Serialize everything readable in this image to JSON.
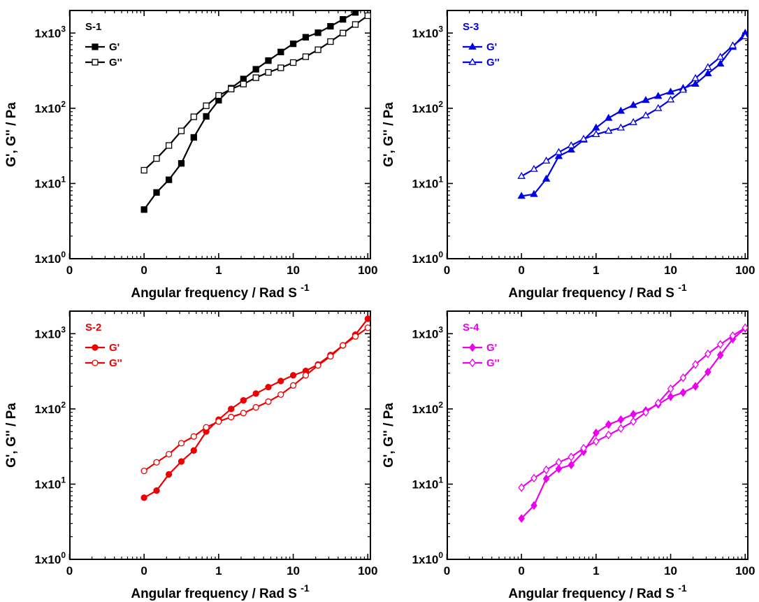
{
  "chart_data": [
    {
      "type": "line",
      "label": "S-1",
      "color": "#000000",
      "marker": "square",
      "xlabel": "Angular frequency / Rad S",
      "xlabel_superscript": "-1",
      "ylabel": "G', G'' / Pa",
      "x_scale": "log",
      "y_scale": "log",
      "y_ticks": [
        "1x10",
        "1x10",
        "1x10",
        "1x10"
      ],
      "y_tick_exponents": [
        "0",
        "1",
        "2",
        "3"
      ],
      "x_ticks": [
        "0",
        "0",
        "1",
        "10",
        "100"
      ],
      "legend_position": "top-left",
      "series": [
        {
          "name": "G'",
          "fill": "filled",
          "points": [
            [
              0.1,
              4.5
            ],
            [
              0.147,
              7.6
            ],
            [
              0.215,
              11.2
            ],
            [
              0.316,
              18.5
            ],
            [
              0.464,
              41
            ],
            [
              0.681,
              78
            ],
            [
              1,
              128
            ],
            [
              1.47,
              185
            ],
            [
              2.15,
              245
            ],
            [
              3.16,
              330
            ],
            [
              4.64,
              430
            ],
            [
              6.81,
              560
            ],
            [
              10,
              720
            ],
            [
              14.7,
              880
            ],
            [
              21.5,
              1010
            ],
            [
              31.6,
              1230
            ],
            [
              46.4,
              1520
            ],
            [
              68.1,
              1880
            ]
          ]
        },
        {
          "name": "G''",
          "fill": "hollow",
          "points": [
            [
              0.1,
              15
            ],
            [
              0.147,
              21.5
            ],
            [
              0.215,
              32
            ],
            [
              0.316,
              50
            ],
            [
              0.464,
              77
            ],
            [
              0.681,
              108
            ],
            [
              1,
              148
            ],
            [
              1.47,
              180
            ],
            [
              2.15,
              210
            ],
            [
              3.16,
              255
            ],
            [
              4.64,
              300
            ],
            [
              6.81,
              345
            ],
            [
              10,
              405
            ],
            [
              14.7,
              485
            ],
            [
              21.5,
              600
            ],
            [
              31.6,
              770
            ],
            [
              46.4,
              1000
            ],
            [
              68.1,
              1300
            ],
            [
              100,
              1700
            ]
          ]
        }
      ]
    },
    {
      "type": "line",
      "label": "S-3",
      "color": "#0000ee",
      "marker": "triangle",
      "xlabel": "Angular frequency / Rad S",
      "xlabel_superscript": "-1",
      "ylabel": "G', G'' / Pa",
      "x_scale": "log",
      "y_scale": "log",
      "y_ticks": [
        "1x10",
        "1x10",
        "1x10",
        "1x10"
      ],
      "y_tick_exponents": [
        "0",
        "1",
        "2",
        "3"
      ],
      "x_ticks": [
        "0",
        "0",
        "1",
        "10",
        "100"
      ],
      "legend_position": "top-left",
      "series": [
        {
          "name": "G'",
          "fill": "filled",
          "points": [
            [
              0.1,
              6.8
            ],
            [
              0.147,
              7.2
            ],
            [
              0.215,
              11.5
            ],
            [
              0.316,
              23
            ],
            [
              0.464,
              28
            ],
            [
              0.681,
              38
            ],
            [
              1,
              55
            ],
            [
              1.47,
              74
            ],
            [
              2.15,
              92
            ],
            [
              3.16,
              110
            ],
            [
              4.64,
              128
            ],
            [
              6.81,
              145
            ],
            [
              10,
              165
            ],
            [
              14.7,
              185
            ],
            [
              21.5,
              210
            ],
            [
              31.6,
              290
            ],
            [
              46.4,
              390
            ],
            [
              68.1,
              650
            ],
            [
              100,
              1000
            ]
          ]
        },
        {
          "name": "G''",
          "fill": "hollow",
          "points": [
            [
              0.1,
              12.5
            ],
            [
              0.147,
              15.5
            ],
            [
              0.215,
              20
            ],
            [
              0.316,
              26
            ],
            [
              0.464,
              32
            ],
            [
              0.681,
              39
            ],
            [
              1,
              45
            ],
            [
              1.47,
              50
            ],
            [
              2.15,
              55
            ],
            [
              3.16,
              65
            ],
            [
              4.64,
              80
            ],
            [
              6.81,
              100
            ],
            [
              10,
              130
            ],
            [
              14.7,
              175
            ],
            [
              21.5,
              250
            ],
            [
              31.6,
              350
            ],
            [
              46.4,
              480
            ],
            [
              68.1,
              680
            ],
            [
              100,
              900
            ]
          ]
        }
      ]
    },
    {
      "type": "line",
      "label": "S-2",
      "color": "#ee0000",
      "marker": "circle",
      "xlabel": "Angular frequency / Rad S",
      "xlabel_superscript": "-1",
      "ylabel": "G', G'' / Pa",
      "x_scale": "log",
      "y_scale": "log",
      "y_ticks": [
        "1x10",
        "1x10",
        "1x10",
        "1x10"
      ],
      "y_tick_exponents": [
        "0",
        "1",
        "2",
        "3"
      ],
      "x_ticks": [
        "0",
        "0",
        "1",
        "10",
        "100"
      ],
      "legend_position": "top-left",
      "series": [
        {
          "name": "G'",
          "fill": "filled",
          "points": [
            [
              0.1,
              6.6
            ],
            [
              0.147,
              8.2
            ],
            [
              0.215,
              13.5
            ],
            [
              0.316,
              20
            ],
            [
              0.464,
              28
            ],
            [
              0.681,
              50
            ],
            [
              1,
              72
            ],
            [
              1.47,
              100
            ],
            [
              2.15,
              130
            ],
            [
              3.16,
              160
            ],
            [
              4.64,
              195
            ],
            [
              6.81,
              235
            ],
            [
              10,
              280
            ],
            [
              14.7,
              320
            ],
            [
              21.5,
              390
            ],
            [
              31.6,
              520
            ],
            [
              46.4,
              700
            ],
            [
              68.1,
              970
            ],
            [
              100,
              1580
            ]
          ]
        },
        {
          "name": "G''",
          "fill": "hollow",
          "points": [
            [
              0.1,
              15
            ],
            [
              0.147,
              19.5
            ],
            [
              0.215,
              25
            ],
            [
              0.316,
              35
            ],
            [
              0.464,
              43
            ],
            [
              0.681,
              57
            ],
            [
              1,
              68
            ],
            [
              1.47,
              78
            ],
            [
              2.15,
              88
            ],
            [
              3.16,
              105
            ],
            [
              4.64,
              125
            ],
            [
              6.81,
              155
            ],
            [
              10,
              205
            ],
            [
              14.7,
              280
            ],
            [
              21.5,
              380
            ],
            [
              31.6,
              500
            ],
            [
              46.4,
              700
            ],
            [
              68.1,
              920
            ],
            [
              100,
              1200
            ]
          ]
        }
      ]
    },
    {
      "type": "line",
      "label": "S-4",
      "color": "#ee00ee",
      "marker": "diamond",
      "xlabel": "Angular frequency / Rad S",
      "xlabel_superscript": "-1",
      "ylabel": "G', G'' / Pa",
      "x_scale": "log",
      "y_scale": "log",
      "y_ticks": [
        "1x10",
        "1x10",
        "1x10",
        "1x10"
      ],
      "y_tick_exponents": [
        "0",
        "1",
        "2",
        "3"
      ],
      "x_ticks": [
        "0",
        "0",
        "1",
        "10",
        "100"
      ],
      "legend_position": "top-left",
      "series": [
        {
          "name": "G'",
          "fill": "filled",
          "points": [
            [
              0.1,
              3.5
            ],
            [
              0.147,
              5.2
            ],
            [
              0.215,
              11.8
            ],
            [
              0.316,
              16
            ],
            [
              0.464,
              18
            ],
            [
              0.681,
              27
            ],
            [
              1,
              48
            ],
            [
              1.47,
              62
            ],
            [
              2.15,
              72
            ],
            [
              3.16,
              85
            ],
            [
              4.64,
              95
            ],
            [
              6.81,
              115
            ],
            [
              10,
              145
            ],
            [
              14.7,
              165
            ],
            [
              21.5,
              200
            ],
            [
              31.6,
              310
            ],
            [
              46.4,
              520
            ],
            [
              68.1,
              850
            ],
            [
              100,
              1180
            ]
          ]
        },
        {
          "name": "G''",
          "fill": "hollow",
          "points": [
            [
              0.1,
              9
            ],
            [
              0.147,
              12
            ],
            [
              0.215,
              15.5
            ],
            [
              0.316,
              19.5
            ],
            [
              0.464,
              23
            ],
            [
              0.681,
              30
            ],
            [
              1,
              37
            ],
            [
              1.47,
              45
            ],
            [
              2.15,
              55
            ],
            [
              3.16,
              68
            ],
            [
              4.64,
              90
            ],
            [
              6.81,
              120
            ],
            [
              10,
              185
            ],
            [
              14.7,
              260
            ],
            [
              21.5,
              390
            ],
            [
              31.6,
              540
            ],
            [
              46.4,
              720
            ],
            [
              68.1,
              940
            ],
            [
              100,
              1200
            ]
          ]
        }
      ]
    }
  ]
}
